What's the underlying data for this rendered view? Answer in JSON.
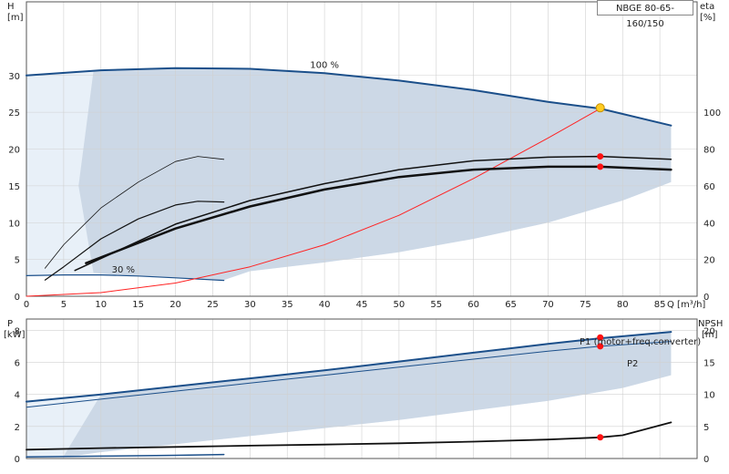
{
  "title": "NBGE 80-65-160/150",
  "chart_data": [
    {
      "type": "line",
      "panel": "head",
      "xlabel": "Q [m³/h]",
      "ylabel_left": [
        "H",
        "[m]"
      ],
      "ylabel_right": [
        "eta",
        "[%]"
      ],
      "xlim": [
        0,
        90
      ],
      "ylim": [
        0,
        40
      ],
      "eta_lim": [
        0,
        160
      ],
      "x_ticks": [
        0,
        5,
        10,
        15,
        20,
        25,
        30,
        35,
        40,
        45,
        50,
        55,
        60,
        65,
        70,
        75,
        80,
        85
      ],
      "y_ticks": [
        0,
        5,
        10,
        15,
        20,
        25,
        30
      ],
      "eta_ticks": [
        0,
        20,
        40,
        60,
        80,
        100
      ],
      "grid": true,
      "annotations": [
        {
          "text": "100 %",
          "x": 40,
          "y": 31.0
        },
        {
          "text": "30 %",
          "x": 13,
          "y": 3.2
        }
      ],
      "series": [
        {
          "name": "100 %",
          "color": "#1b4f8a",
          "width": 2,
          "x": [
            0,
            10,
            20,
            30,
            40,
            50,
            60,
            70,
            77,
            86.5
          ],
          "y": [
            30.0,
            30.7,
            31.0,
            30.9,
            30.3,
            29.3,
            28.0,
            26.4,
            25.5,
            23.2
          ]
        },
        {
          "name": "30 %",
          "color": "#1b4f8a",
          "width": 1.2,
          "x": [
            0,
            5,
            10,
            15,
            20,
            26.5
          ],
          "y": [
            2.8,
            2.9,
            2.9,
            2.75,
            2.5,
            2.15
          ]
        },
        {
          "color": "#ff2222",
          "width": 1,
          "x": [
            0,
            10,
            20,
            30,
            40,
            50,
            60,
            70,
            77
          ],
          "y": [
            0,
            0.5,
            1.8,
            4.0,
            7.0,
            11.0,
            16.0,
            21.5,
            25.5
          ]
        },
        {
          "color": "#111111",
          "width": 1.5,
          "x": [
            6.5,
            20,
            30,
            40,
            50,
            60,
            70,
            77,
            86.5
          ],
          "y": [
            3.5,
            9.8,
            13.0,
            15.3,
            17.2,
            18.4,
            18.9,
            19.0,
            18.6
          ]
        },
        {
          "color": "#111111",
          "width": 2.5,
          "x": [
            8,
            20,
            30,
            40,
            50,
            60,
            70,
            77,
            86.5
          ],
          "y": [
            4.5,
            9.2,
            12.2,
            14.5,
            16.2,
            17.2,
            17.6,
            17.6,
            17.2
          ]
        },
        {
          "color": "#111111",
          "width": 0.8,
          "x": [
            2.5,
            5,
            10,
            15,
            20,
            23,
            26.5
          ],
          "y": [
            3.8,
            7.0,
            12.0,
            15.5,
            18.3,
            19.0,
            18.6
          ]
        },
        {
          "color": "#111111",
          "width": 1.2,
          "x": [
            2.5,
            5,
            10,
            15,
            20,
            23,
            26.5
          ],
          "y": [
            2.2,
            4.0,
            7.8,
            10.5,
            12.4,
            12.9,
            12.8
          ]
        }
      ],
      "markers": [
        {
          "x": 77,
          "y": 25.6,
          "color": "#ffcc22",
          "kind": "op"
        },
        {
          "x": 77,
          "y": 19.0,
          "color": "#ff1111"
        },
        {
          "x": 77,
          "y": 17.6,
          "color": "#ff1111"
        }
      ]
    },
    {
      "type": "line",
      "panel": "power",
      "xlabel": "",
      "ylabel_left": [
        "P",
        "[kW]"
      ],
      "ylabel_right": [
        "NPSH",
        "[m]"
      ],
      "xlim": [
        0,
        90
      ],
      "ylim": [
        0,
        8.7
      ],
      "npsh_lim": [
        0,
        21.75
      ],
      "y_ticks": [
        0,
        2,
        4,
        6,
        8
      ],
      "npsh_ticks": [
        0,
        5,
        10,
        15,
        20
      ],
      "grid": true,
      "series": [
        {
          "name": "P1 (motor+freq.converter)",
          "color": "#1b4f8a",
          "width": 2,
          "x": [
            0,
            10,
            20,
            30,
            40,
            50,
            60,
            70,
            77,
            86.5
          ],
          "y": [
            3.55,
            4.0,
            4.5,
            5.0,
            5.5,
            6.05,
            6.6,
            7.15,
            7.5,
            7.9
          ]
        },
        {
          "name": "P2",
          "color": "#1b4f8a",
          "width": 1,
          "x": [
            0,
            10,
            20,
            30,
            40,
            50,
            60,
            70,
            77,
            86.5
          ],
          "y": [
            3.2,
            3.7,
            4.2,
            4.7,
            5.2,
            5.7,
            6.2,
            6.7,
            7.0,
            7.3
          ]
        },
        {
          "color": "#111111",
          "width": 1.8,
          "x": [
            0,
            10,
            20,
            30,
            40,
            50,
            60,
            70,
            77,
            80,
            86.5
          ],
          "y": [
            0.55,
            0.65,
            0.72,
            0.8,
            0.87,
            0.95,
            1.05,
            1.18,
            1.32,
            1.45,
            2.25
          ]
        },
        {
          "color": "#1b4f8a",
          "width": 1.5,
          "x": [
            0,
            10,
            20,
            26.5
          ],
          "y": [
            0.1,
            0.15,
            0.2,
            0.25
          ]
        }
      ],
      "markers": [
        {
          "x": 77,
          "y": 7.55,
          "color": "#ff1111"
        },
        {
          "x": 77,
          "y": 7.0,
          "color": "#ff1111"
        },
        {
          "x": 77,
          "y": 1.32,
          "color": "#ff1111"
        }
      ]
    }
  ]
}
